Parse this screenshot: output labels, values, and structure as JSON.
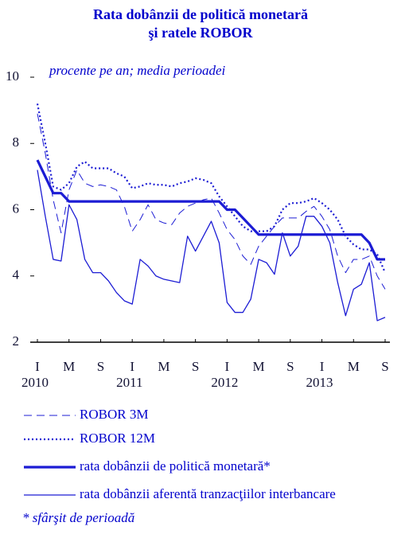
{
  "chart_data": {
    "type": "line",
    "title": [
      "Rata dobânzii de politică monetară",
      "şi ratele ROBOR"
    ],
    "subtitle": "procente pe an; media perioadei",
    "categories": [
      "I",
      null,
      null,
      null,
      "M",
      null,
      null,
      null,
      "S",
      null,
      null,
      null,
      "I",
      null,
      null,
      null,
      "M",
      null,
      null,
      null,
      "S",
      null,
      null,
      null,
      "I",
      null,
      null,
      null,
      "M",
      null,
      null,
      null,
      "S",
      null,
      null,
      null,
      "I",
      null,
      null,
      null,
      "M",
      null,
      null,
      null,
      "S"
    ],
    "year_labels": [
      "2010",
      "2011",
      "2012",
      "2013"
    ],
    "ylim": [
      2,
      10
    ],
    "yticks": [
      2,
      4,
      6,
      8,
      10
    ],
    "series": [
      {
        "name": "ROBOR 3M",
        "color": "#1c1cd4",
        "dash": "dashed",
        "width": 1,
        "values": [
          8.9,
          7.7,
          6.3,
          5.3,
          6.6,
          7.2,
          6.8,
          6.7,
          6.75,
          6.7,
          6.6,
          6.1,
          5.35,
          5.7,
          6.15,
          5.7,
          5.6,
          5.55,
          5.9,
          6.1,
          6.2,
          6.3,
          6.35,
          5.9,
          5.4,
          5.1,
          4.6,
          4.35,
          4.9,
          5.2,
          5.5,
          5.75,
          5.75,
          5.75,
          5.95,
          6.1,
          5.8,
          5.4,
          4.6,
          4.1,
          4.5,
          4.5,
          4.6,
          4.0,
          3.6
        ]
      },
      {
        "name": "ROBOR 12M",
        "color": "#1c1cd4",
        "dash": "dotted",
        "width": 2.2,
        "values": [
          9.2,
          8.0,
          6.7,
          6.6,
          6.8,
          7.3,
          7.45,
          7.25,
          7.25,
          7.25,
          7.1,
          7.0,
          6.65,
          6.7,
          6.8,
          6.75,
          6.75,
          6.7,
          6.8,
          6.85,
          6.95,
          6.9,
          6.8,
          6.4,
          6.1,
          5.8,
          5.5,
          5.35,
          5.35,
          5.35,
          5.5,
          6.0,
          6.2,
          6.2,
          6.25,
          6.35,
          6.2,
          6.0,
          5.7,
          5.2,
          4.95,
          4.8,
          4.8,
          4.65,
          4.1
        ]
      },
      {
        "name": "rata dobânzii de politică monetară*",
        "color": "#1c1cd4",
        "dash": "solid",
        "width": 3.2,
        "values": [
          7.5,
          7.0,
          6.5,
          6.5,
          6.25,
          6.25,
          6.25,
          6.25,
          6.25,
          6.25,
          6.25,
          6.25,
          6.25,
          6.25,
          6.25,
          6.25,
          6.25,
          6.25,
          6.25,
          6.25,
          6.25,
          6.25,
          6.25,
          6.25,
          6.0,
          6.0,
          5.75,
          5.5,
          5.25,
          5.25,
          5.25,
          5.25,
          5.25,
          5.25,
          5.25,
          5.25,
          5.25,
          5.25,
          5.25,
          5.25,
          5.25,
          5.25,
          5.0,
          4.5,
          4.5
        ]
      },
      {
        "name": "rata dobânzii aferentă tranzacţiilor interbancare",
        "color": "#1c1cd4",
        "dash": "solid",
        "width": 1.3,
        "values": [
          7.2,
          5.8,
          4.5,
          4.45,
          6.15,
          5.7,
          4.5,
          4.1,
          4.1,
          3.85,
          3.5,
          3.25,
          3.15,
          4.5,
          4.3,
          4.0,
          3.9,
          3.85,
          3.8,
          5.2,
          4.75,
          5.2,
          5.65,
          5.0,
          3.2,
          2.9,
          2.9,
          3.3,
          4.5,
          4.4,
          4.05,
          5.3,
          4.6,
          4.9,
          5.8,
          5.8,
          5.5,
          5.0,
          3.8,
          2.8,
          3.6,
          3.75,
          4.4,
          2.65,
          2.75
        ]
      }
    ],
    "footnote": "* sfârşit de perioadă"
  }
}
